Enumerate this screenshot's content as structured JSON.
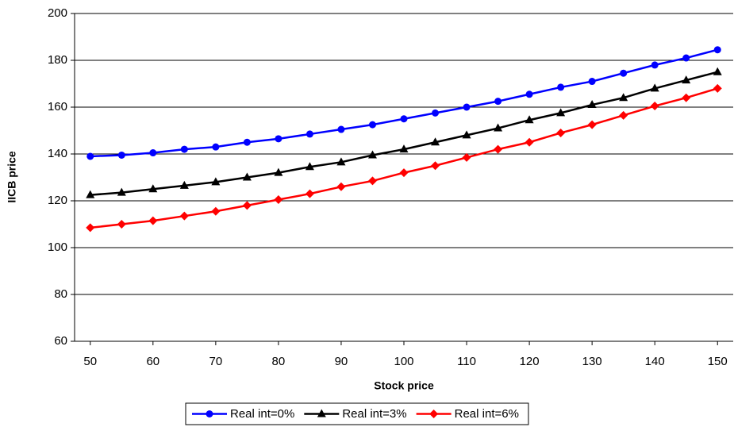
{
  "chart_data": {
    "type": "line",
    "x_label": "Stock price",
    "y_label": "IICB price",
    "x": [
      50,
      55,
      60,
      65,
      70,
      75,
      80,
      85,
      90,
      95,
      100,
      105,
      110,
      115,
      120,
      125,
      130,
      135,
      140,
      145,
      150
    ],
    "series": [
      {
        "name": "Real int=0%",
        "color": "#0000ff",
        "marker": "circle",
        "values": [
          139,
          139.5,
          140.5,
          142,
          143,
          145,
          146.5,
          148.5,
          150.5,
          152.5,
          155,
          157.5,
          160,
          162.5,
          165.5,
          168.5,
          171,
          174.5,
          178,
          181,
          184.5
        ]
      },
      {
        "name": "Real int=3%",
        "color": "#000000",
        "marker": "triangle",
        "values": [
          122.5,
          123.5,
          125,
          126.5,
          128,
          130,
          132,
          134.5,
          136.5,
          139.5,
          142,
          145,
          148,
          151,
          154.5,
          157.5,
          161,
          164,
          168,
          171.5,
          175
        ]
      },
      {
        "name": "Real int=6%",
        "color": "#ff0000",
        "marker": "diamond",
        "values": [
          108.5,
          110,
          111.5,
          113.5,
          115.5,
          118,
          120.5,
          123,
          126,
          128.5,
          132,
          135,
          138.5,
          142,
          145,
          149,
          152.5,
          156.5,
          160.5,
          164,
          168
        ]
      }
    ],
    "xlim": [
      47.5,
      152.5
    ],
    "xticks": [
      50,
      60,
      70,
      80,
      90,
      100,
      110,
      120,
      130,
      140,
      150
    ],
    "ylim": [
      60,
      200
    ],
    "yticks": [
      60,
      80,
      100,
      120,
      140,
      160,
      180,
      200
    ],
    "grid": true,
    "legend": "bottom"
  }
}
